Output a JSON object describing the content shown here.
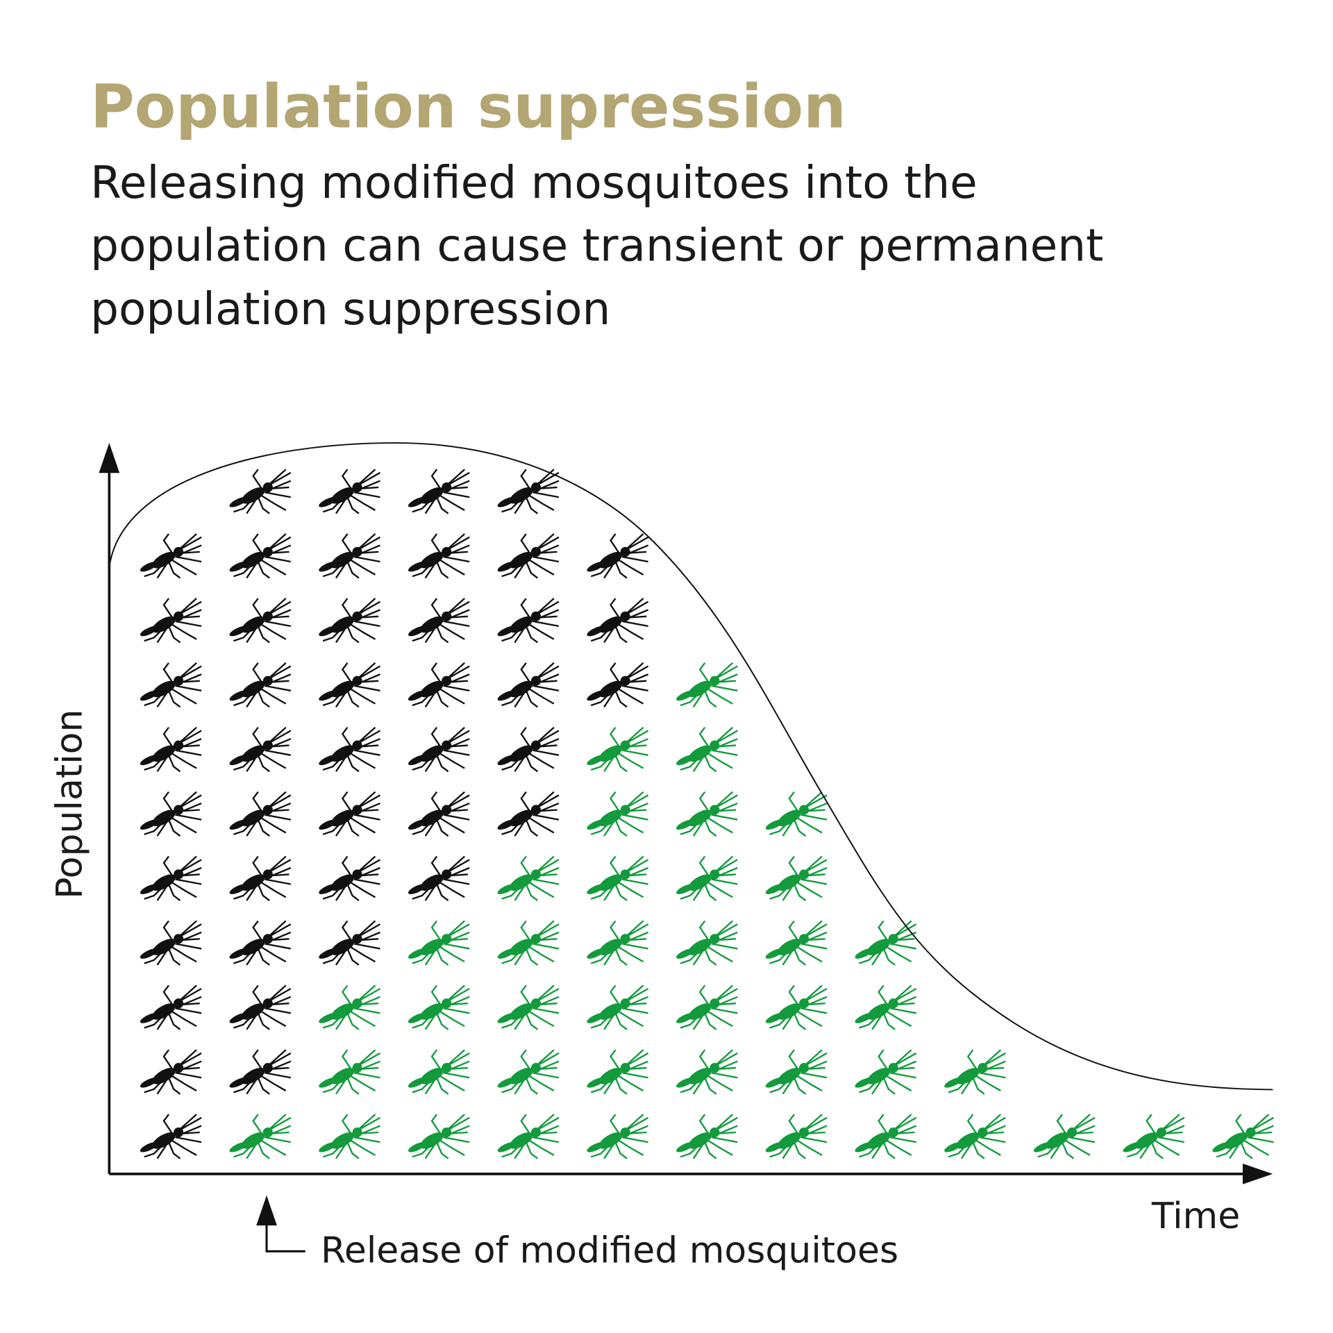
{
  "header": {
    "title": "Population supression",
    "subtitle": [
      "Releasing modified mosquitoes into the",
      "population can cause transient or permanent",
      "population suppression"
    ]
  },
  "diagram": {
    "y_axis_label": "Population",
    "x_axis_label": "Time",
    "annotation": "Release of modified mosquitoes"
  }
}
